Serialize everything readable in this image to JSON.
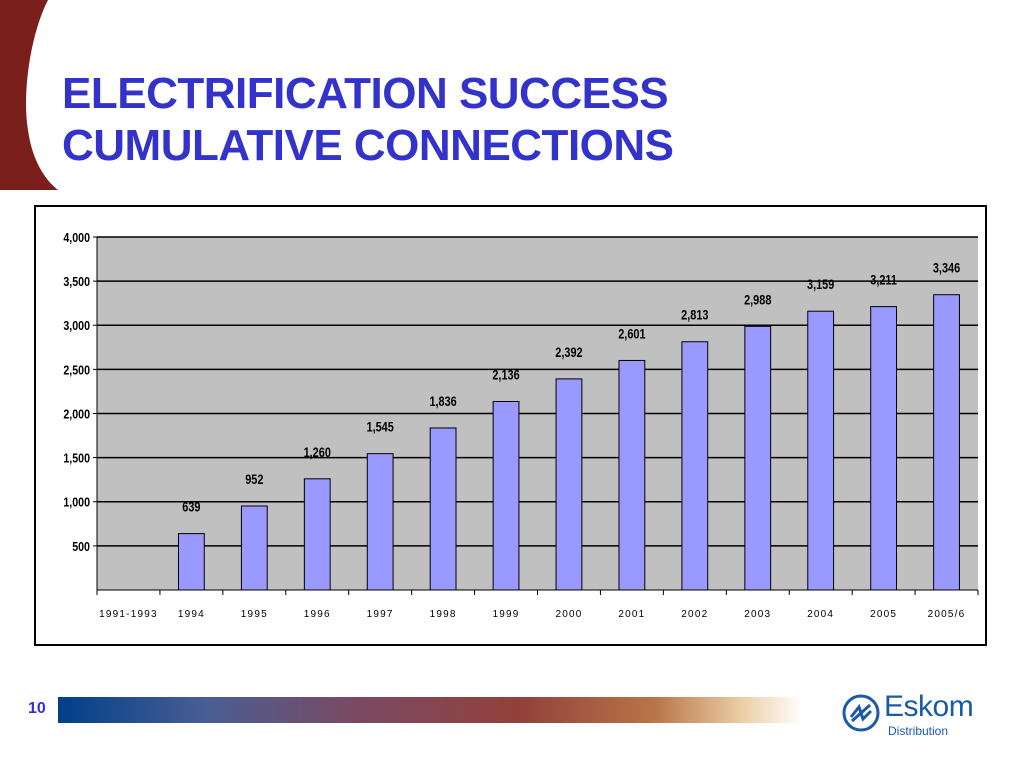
{
  "slide": {
    "title_line1": "ELECTRIFICATION SUCCESS",
    "title_line2": "CUMULATIVE CONNECTIONS",
    "page_number": "10"
  },
  "logo": {
    "name": "Eskom",
    "subtitle": "Distribution"
  },
  "colors": {
    "title": "#3333cc",
    "bar_fill": "#9999ff",
    "plot_background": "#c0c0c0",
    "corner_shape": "#7a1f1c"
  },
  "chart_data": {
    "type": "bar",
    "categories": [
      "1991-1993",
      "1994",
      "1995",
      "1996",
      "1997",
      "1998",
      "1999",
      "2000",
      "2001",
      "2002",
      "2003",
      "2004",
      "2005",
      "2005/6"
    ],
    "values": [
      null,
      639,
      952,
      1260,
      1545,
      1836,
      2136,
      2392,
      2601,
      2813,
      2988,
      3159,
      3211,
      3346
    ],
    "data_labels": [
      "",
      "639",
      "952",
      "1,260",
      "1,545",
      "1,836",
      "2,136",
      "2,392",
      "2,601",
      "2,813",
      "2,988",
      "3,159",
      "3,211",
      "3,346"
    ],
    "y_ticks": [
      500,
      1000,
      1500,
      2000,
      2500,
      3000,
      3500,
      4000
    ],
    "y_tick_labels": [
      "500",
      "1,000",
      "1,500",
      "2,000",
      "2,500",
      "3,000",
      "3,500",
      "4,000"
    ],
    "ylim": [
      0,
      4000
    ],
    "grid": true,
    "legend": false
  }
}
